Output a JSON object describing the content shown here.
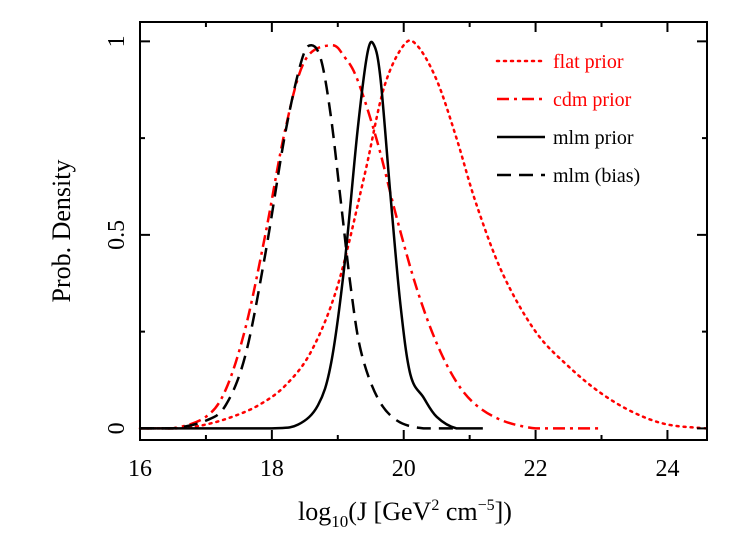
{
  "chart_data": {
    "type": "line",
    "title": "",
    "xlabel": "log10(J [GeV² cm⁻⁵])",
    "xlabel_parts": {
      "pre": "log",
      "sub": "10",
      "mid": "(J [GeV",
      "sup1": "2",
      "mid2": " cm",
      "sup2": "−5",
      "post": "])"
    },
    "ylabel": "Prob. Density",
    "xlim": [
      16,
      24.6
    ],
    "ylim": [
      -0.03,
      1.05
    ],
    "xticks": [
      16,
      18,
      20,
      22,
      24
    ],
    "xtick_labels": [
      "16",
      "18",
      "20",
      "22",
      "24"
    ],
    "yticks": [
      0,
      0.5,
      1
    ],
    "ytick_labels": [
      "0",
      "0.5",
      "1"
    ],
    "legend_position": "top-right",
    "series": [
      {
        "name": "flat prior",
        "color": "#ff0000",
        "style": "dotted",
        "x": [
          16.0,
          16.6,
          17.0,
          17.4,
          17.8,
          18.2,
          18.6,
          19.0,
          19.4,
          19.7,
          20.0,
          20.2,
          20.5,
          20.8,
          21.1,
          21.5,
          22.0,
          22.5,
          23.0,
          23.5,
          24.0,
          24.6
        ],
        "y": [
          0.0,
          0.0,
          0.01,
          0.03,
          0.06,
          0.11,
          0.2,
          0.37,
          0.65,
          0.88,
          0.99,
          0.99,
          0.9,
          0.75,
          0.58,
          0.4,
          0.25,
          0.16,
          0.09,
          0.04,
          0.01,
          0.0
        ]
      },
      {
        "name": "cdm prior",
        "color": "#ff0000",
        "style": "dashdot",
        "x": [
          16.0,
          16.5,
          17.0,
          17.3,
          17.6,
          17.9,
          18.2,
          18.5,
          18.9,
          19.1,
          19.3,
          19.6,
          19.9,
          20.2,
          20.5,
          20.8,
          21.1,
          21.5,
          22.0,
          22.5,
          23.0
        ],
        "y": [
          0.0,
          0.0,
          0.03,
          0.1,
          0.26,
          0.5,
          0.77,
          0.95,
          0.99,
          0.96,
          0.9,
          0.74,
          0.54,
          0.36,
          0.22,
          0.12,
          0.06,
          0.02,
          0.0,
          0.0,
          0.0
        ]
      },
      {
        "name": "mlm prior",
        "color": "#000000",
        "style": "solid",
        "x": [
          16.0,
          17.0,
          18.0,
          18.4,
          18.7,
          18.9,
          19.1,
          19.3,
          19.45,
          19.55,
          19.65,
          19.8,
          19.95,
          20.1,
          20.3,
          20.5,
          20.8,
          21.2
        ],
        "y": [
          0.0,
          0.0,
          0.0,
          0.01,
          0.06,
          0.17,
          0.42,
          0.77,
          0.97,
          0.99,
          0.9,
          0.6,
          0.32,
          0.14,
          0.08,
          0.03,
          0.0,
          0.0
        ]
      },
      {
        "name": "mlm (bias)",
        "color": "#000000",
        "style": "dashed",
        "x": [
          16.0,
          16.5,
          17.0,
          17.3,
          17.6,
          17.9,
          18.2,
          18.45,
          18.6,
          18.75,
          18.9,
          19.05,
          19.2,
          19.35,
          19.6,
          19.9,
          20.3,
          20.8
        ],
        "y": [
          0.0,
          0.0,
          0.02,
          0.06,
          0.19,
          0.45,
          0.76,
          0.95,
          0.99,
          0.95,
          0.8,
          0.58,
          0.36,
          0.2,
          0.08,
          0.02,
          0.0,
          0.0
        ]
      }
    ]
  }
}
